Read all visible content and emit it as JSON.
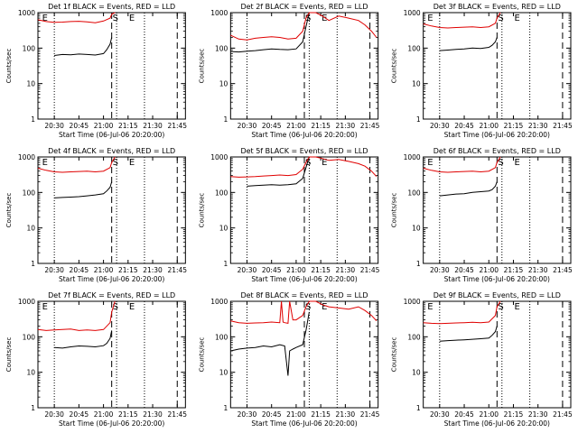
{
  "figure": {
    "ylabel": "Counts/sec",
    "colors": {
      "events": "#000000",
      "lld": "#e00000",
      "axes": "#000000"
    },
    "marker_labels": [
      "S",
      "E"
    ]
  },
  "chart_data": [
    {
      "type": "line",
      "title": "Det 1f BLACK = Events, RED = LLD",
      "xlabel": "Start Time (06-Jul-06 20:20:00)",
      "ylabel": "Counts/sec",
      "yscale": "log",
      "ylim": [
        1,
        1000
      ],
      "xlim": [
        0,
        90
      ],
      "xticks": [
        10,
        25,
        40,
        55,
        70,
        85
      ],
      "xticklabels": [
        "20:30",
        "20:45",
        "21:00",
        "21:15",
        "21:30",
        "21:45"
      ],
      "yticks": [
        1,
        10,
        100,
        1000
      ],
      "yticklabels": [
        "1",
        "10",
        "100",
        "1000"
      ],
      "dotted_lines": [
        10,
        48,
        65
      ],
      "dashed_lines": [
        45,
        85
      ],
      "letters": [
        {
          "text": "E",
          "x": 2
        },
        {
          "text": "S",
          "x": 45
        },
        {
          "text": "E",
          "x": 55
        }
      ],
      "series": [
        {
          "name": "Events",
          "color": "#000000",
          "x": [
            10,
            15,
            20,
            25,
            30,
            35,
            40,
            42,
            44,
            45
          ],
          "y": [
            62,
            66,
            65,
            68,
            66,
            64,
            70,
            90,
            130,
            200
          ]
        },
        {
          "name": "LLD",
          "color": "#e00000",
          "x": [
            0,
            5,
            10,
            15,
            20,
            25,
            30,
            35,
            40,
            44,
            45,
            47
          ],
          "y": [
            630,
            560,
            530,
            540,
            560,
            570,
            550,
            520,
            580,
            700,
            900,
            1000
          ]
        }
      ]
    },
    {
      "type": "line",
      "title": "Det 2f BLACK = Events, RED = LLD",
      "xlabel": "Start Time (06-Jul-06 20:20:00)",
      "ylabel": "Counts/sec",
      "yscale": "log",
      "ylim": [
        1,
        1000
      ],
      "xlim": [
        0,
        90
      ],
      "xticks": [
        10,
        25,
        40,
        55,
        70,
        85
      ],
      "xticklabels": [
        "20:30",
        "20:45",
        "21:00",
        "21:15",
        "21:30",
        "21:45"
      ],
      "yticks": [
        1,
        10,
        100,
        1000
      ],
      "yticklabels": [
        "1",
        "10",
        "100",
        "1000"
      ],
      "dotted_lines": [
        10,
        48,
        65
      ],
      "dashed_lines": [
        45,
        85
      ],
      "letters": [
        {
          "text": "S",
          "x": 45
        },
        {
          "text": "E",
          "x": 55
        }
      ],
      "series": [
        {
          "name": "Events",
          "color": "#000000",
          "x": [
            0,
            5,
            10,
            15,
            20,
            25,
            30,
            35,
            40,
            44,
            46,
            48
          ],
          "y": [
            80,
            78,
            82,
            85,
            90,
            95,
            92,
            90,
            95,
            150,
            400,
            1000
          ]
        },
        {
          "name": "LLD",
          "color": "#e00000",
          "x": [
            0,
            5,
            10,
            15,
            20,
            25,
            30,
            35,
            40,
            44,
            46,
            48,
            52,
            56,
            60,
            66,
            72,
            78,
            82,
            86,
            89
          ],
          "y": [
            230,
            180,
            170,
            190,
            200,
            210,
            200,
            180,
            190,
            300,
            700,
            1000,
            1000,
            800,
            600,
            800,
            700,
            600,
            450,
            300,
            200
          ]
        }
      ]
    },
    {
      "type": "line",
      "title": "Det 3f BLACK = Events, RED = LLD",
      "xlabel": "Start Time (06-Jul-06 20:20:00)",
      "ylabel": "Counts/sec",
      "yscale": "log",
      "ylim": [
        1,
        1000
      ],
      "xlim": [
        0,
        90
      ],
      "xticks": [
        10,
        25,
        40,
        55,
        70,
        85
      ],
      "xticklabels": [
        "20:30",
        "20:45",
        "21:00",
        "21:15",
        "21:30",
        "21:45"
      ],
      "yticks": [
        1,
        10,
        100,
        1000
      ],
      "yticklabels": [
        "1",
        "10",
        "100",
        "1000"
      ],
      "dotted_lines": [
        10,
        48,
        65
      ],
      "dashed_lines": [
        45,
        85
      ],
      "letters": [
        {
          "text": "E",
          "x": 2
        },
        {
          "text": "S",
          "x": 45
        },
        {
          "text": "E",
          "x": 55
        }
      ],
      "series": [
        {
          "name": "Events",
          "color": "#000000",
          "x": [
            10,
            15,
            20,
            25,
            30,
            35,
            40,
            42,
            44,
            45
          ],
          "y": [
            85,
            88,
            92,
            95,
            100,
            98,
            105,
            120,
            150,
            200
          ]
        },
        {
          "name": "LLD",
          "color": "#e00000",
          "x": [
            0,
            5,
            10,
            15,
            20,
            25,
            30,
            35,
            40,
            44,
            45,
            47
          ],
          "y": [
            480,
            420,
            380,
            370,
            380,
            390,
            400,
            380,
            400,
            500,
            700,
            1000
          ]
        }
      ]
    },
    {
      "type": "line",
      "title": "Det 4f BLACK = Events, RED = LLD",
      "xlabel": "Start Time (06-Jul-06 20:20:00)",
      "ylabel": "Counts/sec",
      "yscale": "log",
      "ylim": [
        1,
        1000
      ],
      "xlim": [
        0,
        90
      ],
      "xticks": [
        10,
        25,
        40,
        55,
        70,
        85
      ],
      "xticklabels": [
        "20:30",
        "20:45",
        "21:00",
        "21:15",
        "21:30",
        "21:45"
      ],
      "yticks": [
        1,
        10,
        100,
        1000
      ],
      "yticklabels": [
        "1",
        "10",
        "100",
        "1000"
      ],
      "dotted_lines": [
        10,
        48,
        65
      ],
      "dashed_lines": [
        45,
        85
      ],
      "letters": [
        {
          "text": "E",
          "x": 2
        },
        {
          "text": "S",
          "x": 45
        },
        {
          "text": "E",
          "x": 55
        }
      ],
      "series": [
        {
          "name": "Events",
          "color": "#000000",
          "x": [
            10,
            15,
            20,
            25,
            30,
            35,
            40,
            42,
            44,
            45
          ],
          "y": [
            70,
            72,
            74,
            76,
            80,
            85,
            92,
            110,
            140,
            200
          ]
        },
        {
          "name": "LLD",
          "color": "#e00000",
          "x": [
            0,
            5,
            10,
            15,
            20,
            25,
            30,
            35,
            40,
            44,
            45,
            47
          ],
          "y": [
            480,
            420,
            380,
            370,
            380,
            390,
            400,
            380,
            400,
            500,
            700,
            1000
          ]
        }
      ]
    },
    {
      "type": "line",
      "title": "Det 5f BLACK = Events, RED = LLD",
      "xlabel": "Start Time (06-Jul-06 20:20:00)",
      "ylabel": "Counts/sec",
      "yscale": "log",
      "ylim": [
        1,
        1000
      ],
      "xlim": [
        0,
        90
      ],
      "xticks": [
        10,
        25,
        40,
        55,
        70,
        85
      ],
      "xticklabels": [
        "20:30",
        "20:45",
        "21:00",
        "21:15",
        "21:30",
        "21:45"
      ],
      "yticks": [
        1,
        10,
        100,
        1000
      ],
      "yticklabels": [
        "1",
        "10",
        "100",
        "1000"
      ],
      "dotted_lines": [
        10,
        48,
        65
      ],
      "dashed_lines": [
        45,
        85
      ],
      "letters": [
        {
          "text": "S",
          "x": 45
        },
        {
          "text": "E",
          "x": 55
        }
      ],
      "series": [
        {
          "name": "Events",
          "color": "#000000",
          "x": [
            10,
            15,
            20,
            25,
            30,
            35,
            40,
            44,
            46,
            48
          ],
          "y": [
            150,
            155,
            160,
            165,
            160,
            165,
            175,
            250,
            500,
            1000
          ]
        },
        {
          "name": "LLD",
          "color": "#e00000",
          "x": [
            0,
            5,
            10,
            15,
            20,
            25,
            30,
            35,
            40,
            44,
            46,
            48,
            52,
            56,
            60,
            66,
            72,
            78,
            82,
            86,
            89
          ],
          "y": [
            280,
            270,
            275,
            280,
            290,
            300,
            310,
            300,
            320,
            450,
            700,
            1000,
            1000,
            900,
            800,
            850,
            750,
            650,
            550,
            400,
            280
          ]
        }
      ]
    },
    {
      "type": "line",
      "title": "Det 6f BLACK = Events, RED = LLD",
      "xlabel": "Start Time (06-Jul-06 20:20:00)",
      "ylabel": "Counts/sec",
      "yscale": "log",
      "ylim": [
        1,
        1000
      ],
      "xlim": [
        0,
        90
      ],
      "xticks": [
        10,
        25,
        40,
        55,
        70,
        85
      ],
      "xticklabels": [
        "20:30",
        "20:45",
        "21:00",
        "21:15",
        "21:30",
        "21:45"
      ],
      "yticks": [
        1,
        10,
        100,
        1000
      ],
      "yticklabels": [
        "1",
        "10",
        "100",
        "1000"
      ],
      "dotted_lines": [
        10,
        48,
        65
      ],
      "dashed_lines": [
        45,
        85
      ],
      "letters": [
        {
          "text": "E",
          "x": 2
        },
        {
          "text": "S",
          "x": 45
        },
        {
          "text": "E",
          "x": 55
        }
      ],
      "series": [
        {
          "name": "Events",
          "color": "#000000",
          "x": [
            10,
            15,
            20,
            25,
            30,
            35,
            40,
            42,
            44,
            45
          ],
          "y": [
            80,
            85,
            90,
            92,
            100,
            105,
            110,
            120,
            150,
            200
          ]
        },
        {
          "name": "LLD",
          "color": "#e00000",
          "x": [
            0,
            5,
            10,
            15,
            20,
            25,
            30,
            35,
            40,
            44,
            45,
            47
          ],
          "y": [
            480,
            420,
            380,
            370,
            380,
            390,
            400,
            380,
            400,
            500,
            700,
            1000
          ]
        }
      ]
    },
    {
      "type": "line",
      "title": "Det 7f BLACK = Events, RED = LLD",
      "xlabel": "Start Time (06-Jul-06 20:20:00)",
      "ylabel": "Counts/sec",
      "yscale": "log",
      "ylim": [
        1,
        1000
      ],
      "xlim": [
        0,
        90
      ],
      "xticks": [
        10,
        25,
        40,
        55,
        70,
        85
      ],
      "xticklabels": [
        "20:30",
        "20:45",
        "21:00",
        "21:15",
        "21:30",
        "21:45"
      ],
      "yticks": [
        1,
        10,
        100,
        1000
      ],
      "yticklabels": [
        "1",
        "10",
        "100",
        "1000"
      ],
      "dotted_lines": [
        10,
        48,
        65
      ],
      "dashed_lines": [
        45,
        85
      ],
      "letters": [
        {
          "text": "E",
          "x": 2
        },
        {
          "text": "S",
          "x": 45
        },
        {
          "text": "E",
          "x": 55
        }
      ],
      "series": [
        {
          "name": "Events",
          "color": "#000000",
          "x": [
            10,
            15,
            20,
            25,
            30,
            35,
            40,
            42,
            44,
            45
          ],
          "y": [
            50,
            48,
            52,
            55,
            54,
            52,
            56,
            65,
            90,
            150
          ]
        },
        {
          "name": "LLD",
          "color": "#e00000",
          "x": [
            0,
            5,
            10,
            15,
            20,
            25,
            30,
            35,
            40,
            44,
            45,
            47
          ],
          "y": [
            160,
            150,
            155,
            160,
            165,
            150,
            155,
            150,
            160,
            250,
            500,
            1000
          ]
        }
      ]
    },
    {
      "type": "line",
      "title": "Det 8f BLACK = Events, RED = LLD",
      "xlabel": "Start Time (06-Jul-06 20:20:00)",
      "ylabel": "Counts/sec",
      "yscale": "log",
      "ylim": [
        1,
        1000
      ],
      "xlim": [
        0,
        90
      ],
      "xticks": [
        10,
        25,
        40,
        55,
        70,
        85
      ],
      "xticklabels": [
        "20:30",
        "20:45",
        "21:00",
        "21:15",
        "21:30",
        "21:45"
      ],
      "yticks": [
        1,
        10,
        100,
        1000
      ],
      "yticklabels": [
        "1",
        "10",
        "100",
        "1000"
      ],
      "dotted_lines": [
        10,
        48,
        65
      ],
      "dashed_lines": [
        45,
        85
      ],
      "letters": [
        {
          "text": "S",
          "x": 45
        },
        {
          "text": "E",
          "x": 55
        }
      ],
      "series": [
        {
          "name": "Events",
          "color": "#000000",
          "x": [
            0,
            5,
            10,
            15,
            20,
            25,
            30,
            33,
            35,
            36,
            38,
            40,
            44,
            46,
            48
          ],
          "y": [
            40,
            45,
            48,
            50,
            55,
            52,
            60,
            55,
            8,
            40,
            45,
            50,
            60,
            150,
            500
          ]
        },
        {
          "name": "LLD",
          "color": "#e00000",
          "x": [
            0,
            5,
            10,
            15,
            20,
            25,
            30,
            31,
            32,
            33,
            35,
            36,
            38,
            40,
            44,
            46,
            48,
            52,
            56,
            60,
            66,
            72,
            78,
            82,
            86,
            89
          ],
          "y": [
            280,
            250,
            240,
            245,
            250,
            260,
            250,
            1000,
            260,
            250,
            240,
            1000,
            300,
            300,
            400,
            700,
            1000,
            1000,
            800,
            700,
            650,
            600,
            700,
            550,
            400,
            280
          ]
        }
      ]
    },
    {
      "type": "line",
      "title": "Det 9f BLACK = Events, RED = LLD",
      "xlabel": "Start Time (06-Jul-06 20:20:00)",
      "ylabel": "Counts/sec",
      "yscale": "log",
      "ylim": [
        1,
        1000
      ],
      "xlim": [
        0,
        90
      ],
      "xticks": [
        10,
        25,
        40,
        55,
        70,
        85
      ],
      "xticklabels": [
        "20:30",
        "20:45",
        "21:00",
        "21:15",
        "21:30",
        "21:45"
      ],
      "yticks": [
        1,
        10,
        100,
        1000
      ],
      "yticklabels": [
        "1",
        "10",
        "100",
        "1000"
      ],
      "dotted_lines": [
        10,
        48,
        65
      ],
      "dashed_lines": [
        45,
        85
      ],
      "letters": [
        {
          "text": "E",
          "x": 2
        },
        {
          "text": "S",
          "x": 45
        },
        {
          "text": "E",
          "x": 55
        }
      ],
      "series": [
        {
          "name": "Events",
          "color": "#000000",
          "x": [
            10,
            15,
            20,
            25,
            30,
            35,
            40,
            42,
            44,
            45
          ],
          "y": [
            75,
            78,
            80,
            82,
            85,
            88,
            92,
            110,
            140,
            200
          ]
        },
        {
          "name": "LLD",
          "color": "#e00000",
          "x": [
            0,
            5,
            10,
            15,
            20,
            25,
            30,
            35,
            40,
            44,
            45,
            47
          ],
          "y": [
            250,
            240,
            235,
            240,
            245,
            250,
            255,
            250,
            260,
            400,
            700,
            1000
          ]
        }
      ]
    }
  ]
}
